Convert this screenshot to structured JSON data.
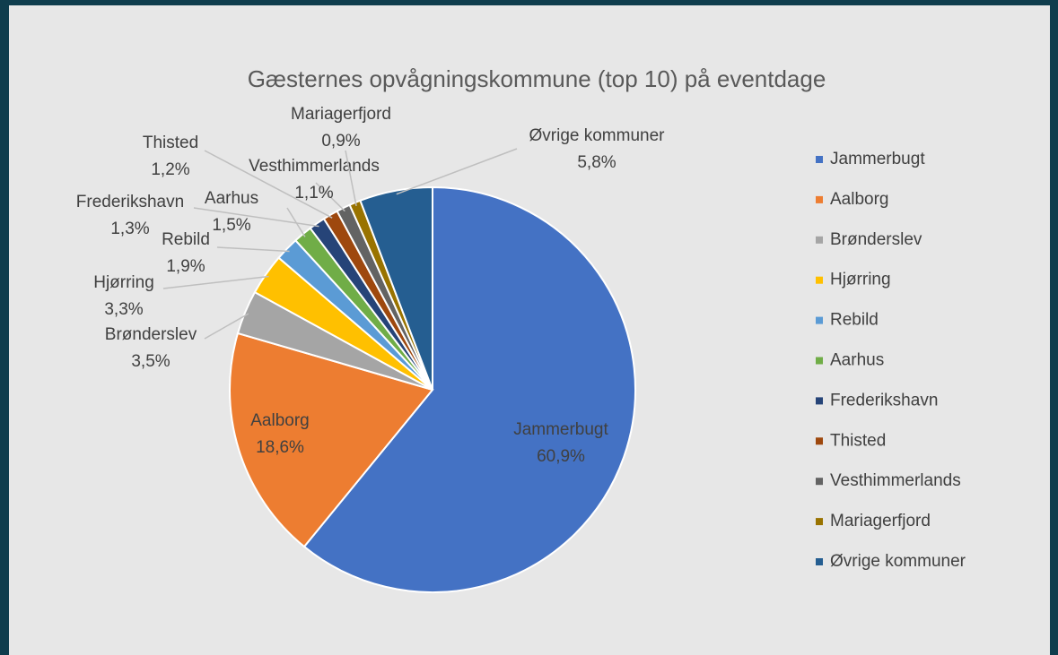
{
  "chart_data": {
    "type": "pie",
    "title": "Gæsternes opvågningskommune (top 10) på eventdage",
    "categories": [
      "Jammerbugt",
      "Aalborg",
      "Brønderslev",
      "Hjørring",
      "Rebild",
      "Aarhus",
      "Frederikshavn",
      "Thisted",
      "Vesthimmerlands",
      "Mariagerfjord",
      "Øvrige kommuner"
    ],
    "values": [
      60.9,
      18.6,
      3.5,
      3.3,
      1.9,
      1.5,
      1.3,
      1.2,
      1.1,
      0.9,
      5.8
    ],
    "value_labels": [
      "60,9%",
      "18,6%",
      "3,5%",
      "3,3%",
      "1,9%",
      "1,5%",
      "1,3%",
      "1,2%",
      "1,1%",
      "0,9%",
      "5,8%"
    ],
    "colors": [
      "#4472c4",
      "#ed7d31",
      "#a5a5a5",
      "#ffc000",
      "#5b9bd5",
      "#70ad47",
      "#264478",
      "#9e480e",
      "#636363",
      "#997300",
      "#255e91"
    ],
    "legend": "right"
  }
}
